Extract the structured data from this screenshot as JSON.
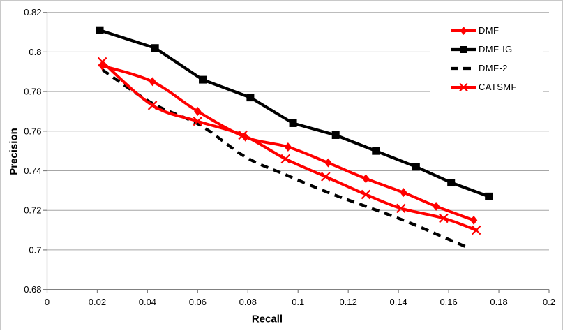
{
  "chart_data": {
    "type": "line",
    "title": "",
    "xlabel": "Recall",
    "ylabel": "Precision",
    "xlim": [
      0,
      0.2
    ],
    "ylim": [
      0.68,
      0.82
    ],
    "grid": "horizontal",
    "legend_position": "upper-right",
    "x_tick_values": [
      0,
      0.02,
      0.04,
      0.06,
      0.08,
      0.1,
      0.12,
      0.14,
      0.16,
      0.18,
      0.2
    ],
    "x_tick_labels": [
      "0",
      "0.02",
      "0.04",
      "0.06",
      "0.08",
      "0.1",
      "0.12",
      "0.14",
      "0.16",
      "0.18",
      "0.2"
    ],
    "y_tick_values": [
      0.68,
      0.7,
      0.72,
      0.74,
      0.76,
      0.78,
      0.8,
      0.82
    ],
    "y_tick_labels": [
      "0.68",
      "0.7",
      "0.72",
      "0.74",
      "0.76",
      "0.78",
      "0.8",
      "0.82"
    ],
    "colors": {
      "red_series": "#FF0000",
      "black_series": "#000000",
      "gridline": "#A6A6A6",
      "axis": "#808080",
      "tick_text": "#000000",
      "frame_border": "#C8C8C8",
      "background": "#FFFFFF"
    },
    "series": [
      {
        "name": "DMF",
        "color": "#FF0000",
        "marker": "diamond",
        "line_style": "solid",
        "smooth": true,
        "points": [
          [
            0.022,
            0.793
          ],
          [
            0.042,
            0.785
          ],
          [
            0.06,
            0.77
          ],
          [
            0.079,
            0.757
          ],
          [
            0.096,
            0.752
          ],
          [
            0.112,
            0.744
          ],
          [
            0.127,
            0.736
          ],
          [
            0.142,
            0.729
          ],
          [
            0.155,
            0.722
          ],
          [
            0.17,
            0.715
          ]
        ]
      },
      {
        "name": "DMF-IG",
        "color": "#000000",
        "marker": "square",
        "line_style": "solid",
        "smooth": false,
        "points": [
          [
            0.021,
            0.811
          ],
          [
            0.043,
            0.802
          ],
          [
            0.062,
            0.786
          ],
          [
            0.081,
            0.777
          ],
          [
            0.098,
            0.764
          ],
          [
            0.115,
            0.758
          ],
          [
            0.131,
            0.75
          ],
          [
            0.147,
            0.742
          ],
          [
            0.161,
            0.734
          ],
          [
            0.176,
            0.727
          ]
        ]
      },
      {
        "name": "DMF-2",
        "color": "#000000",
        "marker": "none",
        "line_style": "dashed",
        "smooth": true,
        "points": [
          [
            0.022,
            0.791
          ],
          [
            0.042,
            0.774
          ],
          [
            0.061,
            0.763
          ],
          [
            0.079,
            0.747
          ],
          [
            0.095,
            0.738
          ],
          [
            0.112,
            0.729
          ],
          [
            0.127,
            0.722
          ],
          [
            0.142,
            0.715
          ],
          [
            0.157,
            0.707
          ],
          [
            0.168,
            0.701
          ]
        ]
      },
      {
        "name": "CATSMF",
        "color": "#FF0000",
        "marker": "x",
        "line_style": "solid",
        "smooth": true,
        "points": [
          [
            0.022,
            0.795
          ],
          [
            0.042,
            0.773
          ],
          [
            0.06,
            0.765
          ],
          [
            0.078,
            0.758
          ],
          [
            0.095,
            0.746
          ],
          [
            0.111,
            0.737
          ],
          [
            0.127,
            0.728
          ],
          [
            0.141,
            0.721
          ],
          [
            0.158,
            0.716
          ],
          [
            0.171,
            0.71
          ]
        ]
      }
    ]
  }
}
